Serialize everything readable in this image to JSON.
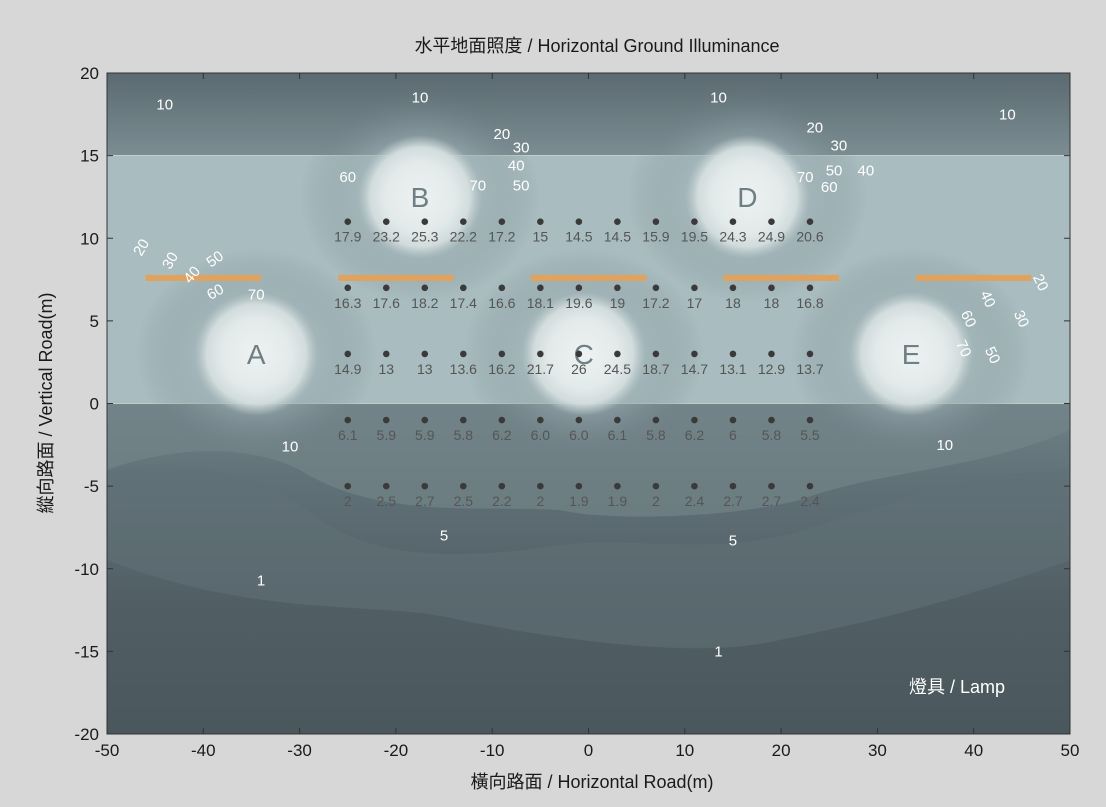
{
  "chart_data": {
    "type": "heatmap",
    "title": "水平地面照度 / Horizontal Ground Illuminance",
    "xlabel": "橫向路面 / Horizontal Road(m)",
    "ylabel": "縱向路面 / Vertical Road(m)",
    "xlim": [
      -50,
      50
    ],
    "ylim": [
      -20,
      20
    ],
    "xticks": [
      "-50",
      "-40",
      "-30",
      "-20",
      "-10",
      "0",
      "10",
      "20",
      "30",
      "40",
      "50"
    ],
    "yticks": [
      "20",
      "15",
      "10",
      "5",
      "0",
      "-5",
      "-10",
      "-15",
      "-20"
    ],
    "road_band": {
      "y0": 0,
      "y1": 15
    },
    "lamp_label": "燈具 / Lamp",
    "lamps": [
      {
        "x0": -46,
        "x1": -34,
        "y": 7.6
      },
      {
        "x0": -26,
        "x1": -14,
        "y": 7.6
      },
      {
        "x0": -6,
        "x1": 6,
        "y": 7.6
      },
      {
        "x0": 14,
        "x1": 26,
        "y": 7.6
      },
      {
        "x0": 34,
        "x1": 46,
        "y": 7.6
      }
    ],
    "hotspots": [
      {
        "label": "A",
        "x": -34.5,
        "y": 3
      },
      {
        "label": "B",
        "x": -17.5,
        "y": 12.5
      },
      {
        "label": "C",
        "x": -0.5,
        "y": 3
      },
      {
        "label": "D",
        "x": 16.5,
        "y": 12.5
      },
      {
        "label": "E",
        "x": 33.5,
        "y": 3
      }
    ],
    "measure_x": [
      -25,
      -21,
      -17,
      -13,
      -9,
      -5,
      -1,
      3,
      7,
      11,
      15,
      19,
      23
    ],
    "measure_rows": [
      {
        "y": 11,
        "values": [
          "17.9",
          "23.2",
          "25.3",
          "22.2",
          "17.2",
          "15",
          "14.5",
          "14.5",
          "15.9",
          "19.5",
          "24.3",
          "24.9",
          "20.6"
        ]
      },
      {
        "y": 7,
        "values": [
          "16.3",
          "17.6",
          "18.2",
          "17.4",
          "16.6",
          "18.1",
          "19.6",
          "19",
          "17.2",
          "17",
          "18",
          "18",
          "16.8"
        ]
      },
      {
        "y": 3,
        "values": [
          "14.9",
          "13",
          "13",
          "13.6",
          "16.2",
          "21.7",
          "26",
          "24.5",
          "18.7",
          "14.7",
          "13.1",
          "12.9",
          "13.7"
        ]
      },
      {
        "y": -1,
        "values": [
          "6.1",
          "5.9",
          "5.9",
          "5.8",
          "6.2",
          "6.0",
          "6.0",
          "6.1",
          "5.8",
          "6.2",
          "6",
          "5.8",
          "5.5"
        ]
      },
      {
        "y": -5,
        "values": [
          "2",
          "2.5",
          "2.7",
          "2.5",
          "2.2",
          "2",
          "1.9",
          "1.9",
          "2",
          "2.4",
          "2.7",
          "2.7",
          "2.4"
        ]
      }
    ],
    "contour_labels": [
      {
        "text": "10",
        "x": -44,
        "y": 17.8,
        "rot": 0
      },
      {
        "text": "10",
        "x": -17.5,
        "y": 18.2,
        "rot": 0
      },
      {
        "text": "10",
        "x": 13.5,
        "y": 18.2,
        "rot": 0
      },
      {
        "text": "10",
        "x": 43.5,
        "y": 17.2,
        "rot": 0
      },
      {
        "text": "20",
        "x": -9,
        "y": 16,
        "rot": 0
      },
      {
        "text": "30",
        "x": -7,
        "y": 15.2,
        "rot": 0
      },
      {
        "text": "40",
        "x": -7.5,
        "y": 14.1,
        "rot": 0
      },
      {
        "text": "50",
        "x": -7,
        "y": 12.9,
        "rot": 0
      },
      {
        "text": "60",
        "x": -25,
        "y": 13.4,
        "rot": 0
      },
      {
        "text": "70",
        "x": -11.5,
        "y": 12.9,
        "rot": 0
      },
      {
        "text": "20",
        "x": 23.5,
        "y": 16.4,
        "rot": 0
      },
      {
        "text": "30",
        "x": 26,
        "y": 15.3,
        "rot": 0
      },
      {
        "text": "40",
        "x": 28.8,
        "y": 13.8,
        "rot": 0
      },
      {
        "text": "50",
        "x": 25.5,
        "y": 13.8,
        "rot": 0
      },
      {
        "text": "70",
        "x": 22.5,
        "y": 13.4,
        "rot": 0
      },
      {
        "text": "60",
        "x": 25,
        "y": 12.8,
        "rot": 0
      },
      {
        "text": "20",
        "x": -46,
        "y": 9.3,
        "rot": -60
      },
      {
        "text": "30",
        "x": -43,
        "y": 8.5,
        "rot": -60
      },
      {
        "text": "40",
        "x": -40.8,
        "y": 7.6,
        "rot": -50
      },
      {
        "text": "50",
        "x": -38.5,
        "y": 8.5,
        "rot": -35
      },
      {
        "text": "60",
        "x": -38.5,
        "y": 6.5,
        "rot": -30
      },
      {
        "text": "70",
        "x": -34.5,
        "y": 6.3,
        "rot": 0
      },
      {
        "text": "20",
        "x": 46.5,
        "y": 7.2,
        "rot": 65
      },
      {
        "text": "40",
        "x": 41,
        "y": 6.2,
        "rot": 65
      },
      {
        "text": "30",
        "x": 44.5,
        "y": 5,
        "rot": 65
      },
      {
        "text": "60",
        "x": 39,
        "y": 5,
        "rot": 65
      },
      {
        "text": "70",
        "x": 38.5,
        "y": 3.2,
        "rot": 65
      },
      {
        "text": "50",
        "x": 41.5,
        "y": 2.8,
        "rot": 65
      },
      {
        "text": "10",
        "x": -31,
        "y": -2.9,
        "rot": 0
      },
      {
        "text": "10",
        "x": 37,
        "y": -2.8,
        "rot": 0
      },
      {
        "text": "5",
        "x": -15,
        "y": -8.3,
        "rot": 0
      },
      {
        "text": "5",
        "x": 15,
        "y": -8.6,
        "rot": 0
      },
      {
        "text": "1",
        "x": -34,
        "y": -11,
        "rot": 0
      },
      {
        "text": "1",
        "x": 13.5,
        "y": -15.3,
        "rot": 0
      }
    ],
    "colors": {
      "background": "#d7d7d7",
      "plot_dark": "#4c5a60",
      "road_band": "#a9bcbf",
      "hotspot": "#e6ecec",
      "lamp_bar": "#e0a25c",
      "point": "#3a3a3a",
      "value_text": "#555555",
      "contour_text": "#ffffff"
    }
  }
}
